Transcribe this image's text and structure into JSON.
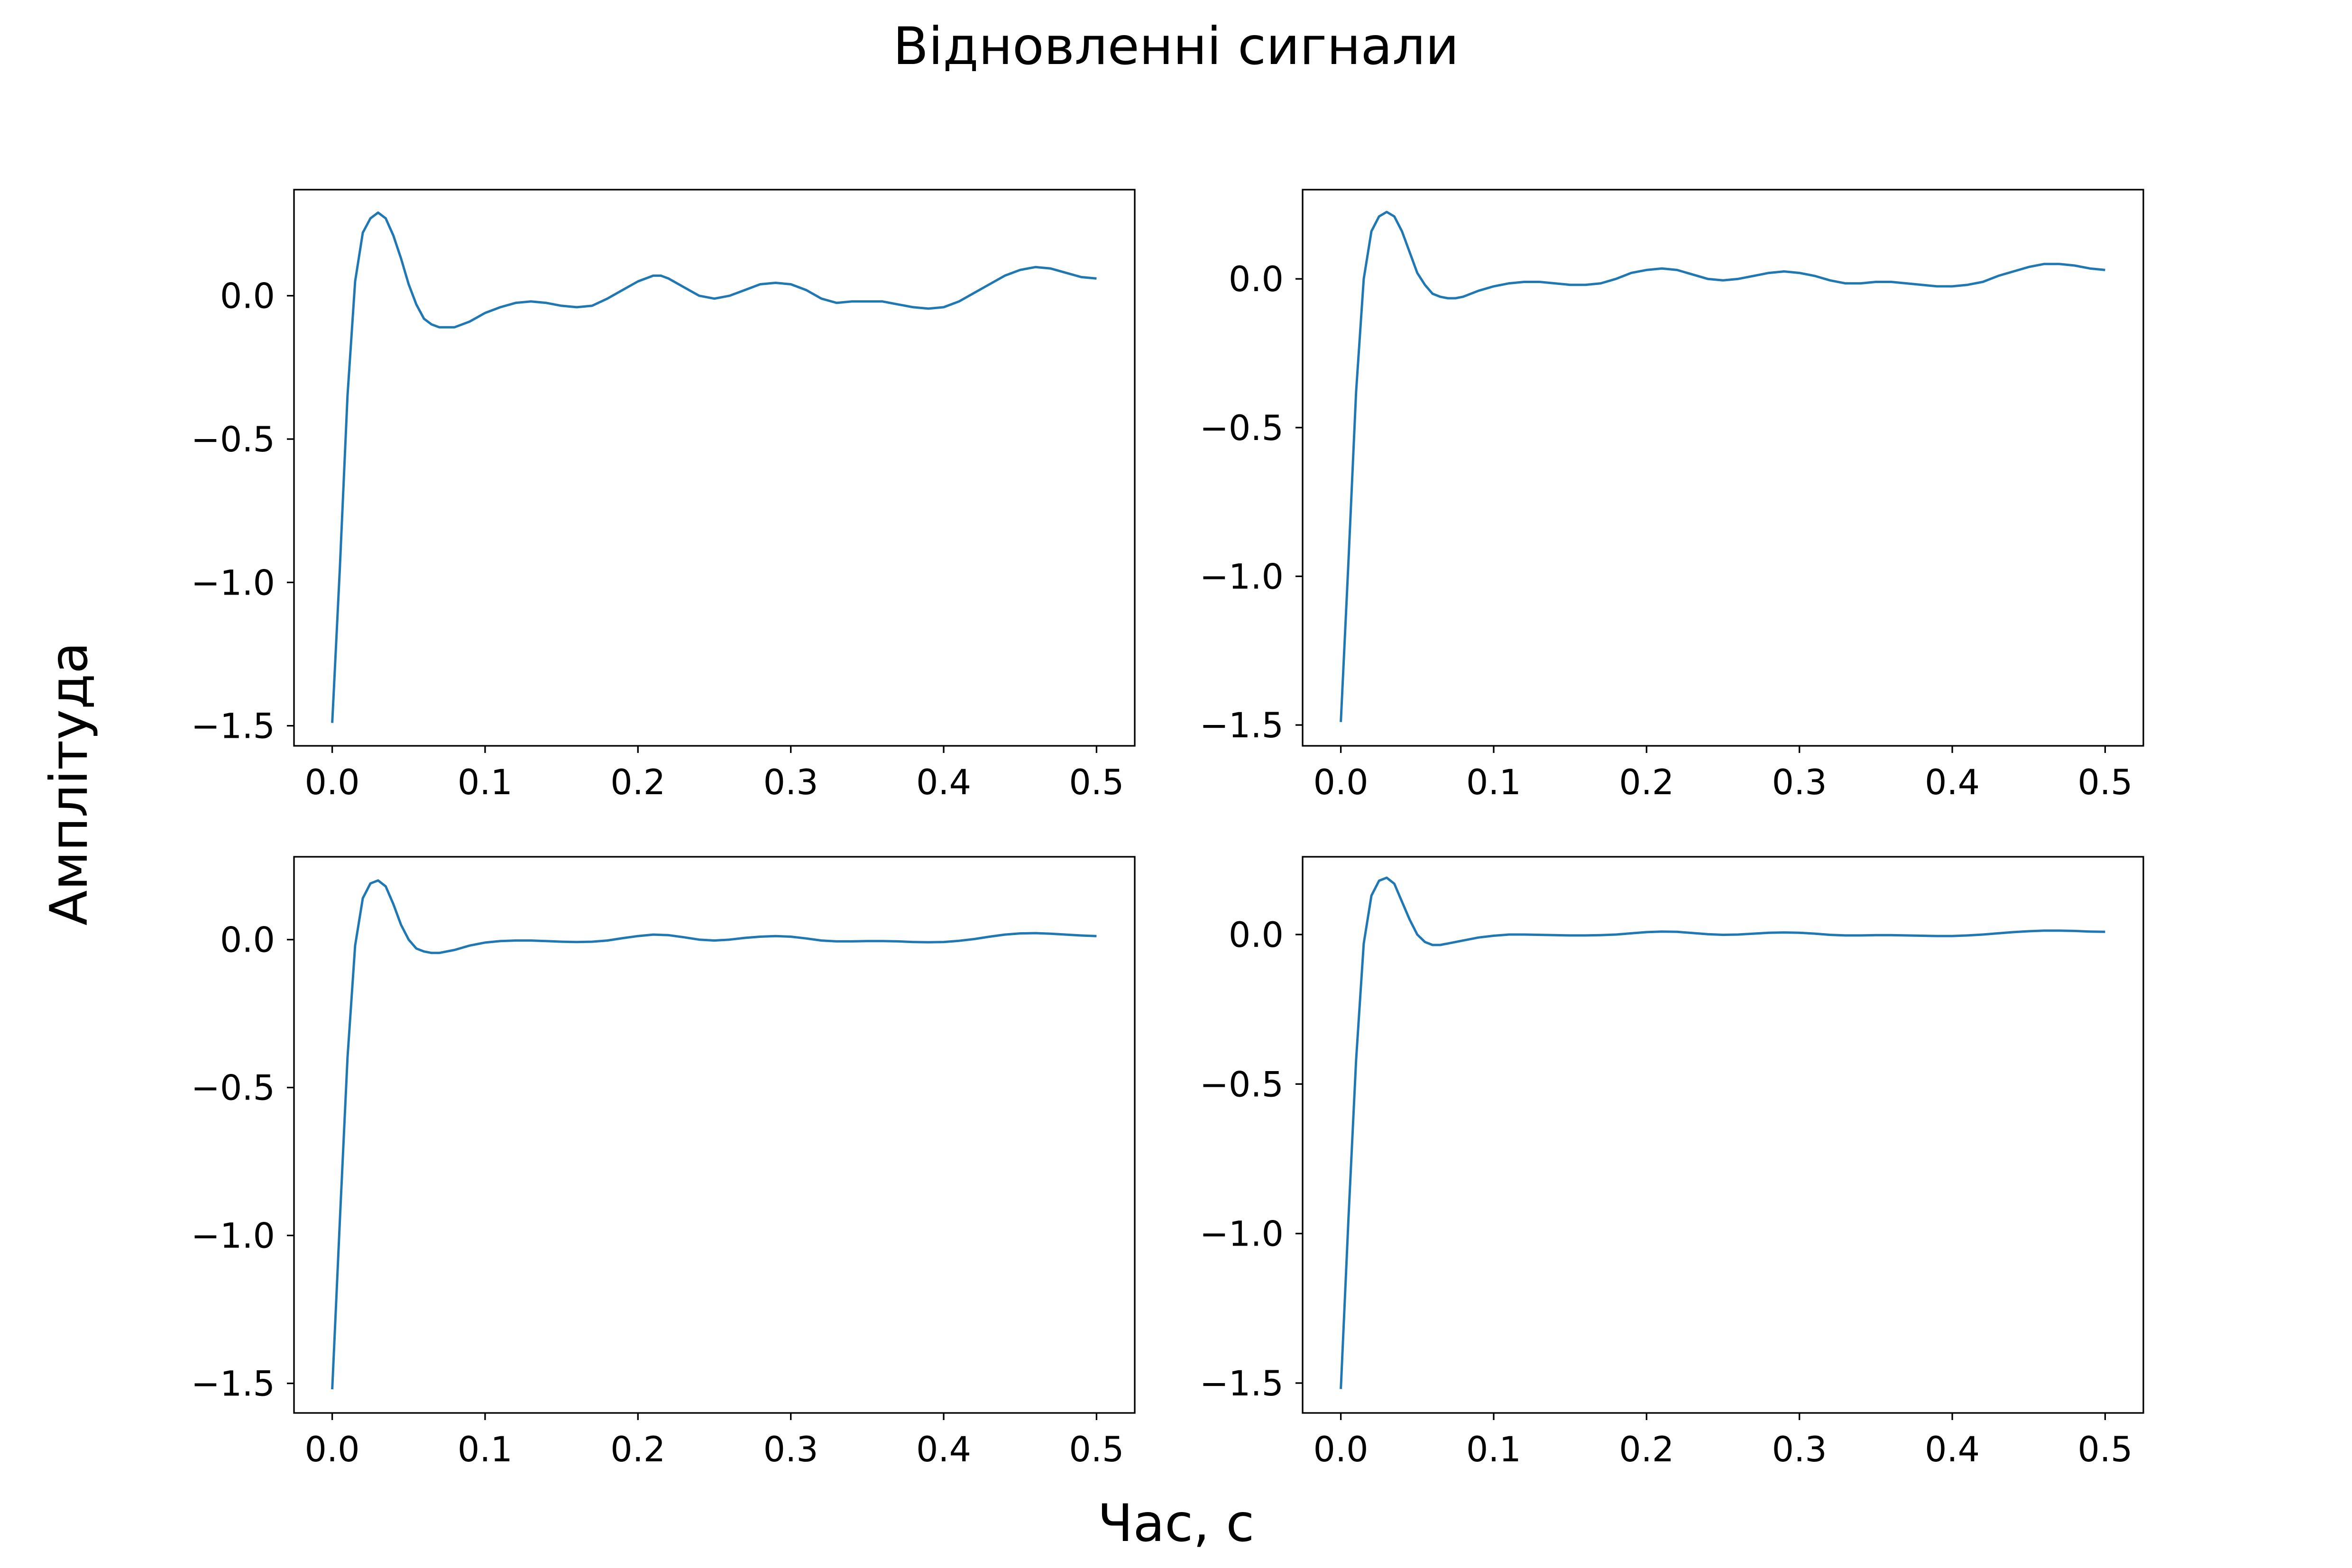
{
  "figure": {
    "suptitle": "Відновленні  сигнали",
    "xlabel": "Час, с",
    "ylabel": "Амплітуда",
    "line_color": "#1f77b4"
  },
  "chart_data": [
    {
      "type": "line",
      "title": "",
      "xlabel": "",
      "ylabel": "",
      "grid": false,
      "xlim": [
        -0.025,
        0.525
      ],
      "ylim": [
        -1.57,
        0.37
      ],
      "xticks": [
        0.0,
        0.1,
        0.2,
        0.3,
        0.4,
        0.5
      ],
      "xtick_labels": [
        "0.0",
        "0.1",
        "0.2",
        "0.3",
        "0.4",
        "0.5"
      ],
      "yticks": [
        -1.5,
        -1.0,
        -0.5,
        0.0
      ],
      "ytick_labels": [
        "−1.5",
        "−1.0",
        "−0.5",
        "0.0"
      ],
      "series": [
        {
          "x": [
            0,
            0.005,
            0.01,
            0.015,
            0.02,
            0.025,
            0.03,
            0.035,
            0.04,
            0.045,
            0.05,
            0.055,
            0.06,
            0.065,
            0.07,
            0.075,
            0.08,
            0.085,
            0.09,
            0.1,
            0.11,
            0.12,
            0.13,
            0.14,
            0.15,
            0.16,
            0.17,
            0.18,
            0.19,
            0.2,
            0.21,
            0.215,
            0.22,
            0.23,
            0.24,
            0.25,
            0.26,
            0.27,
            0.28,
            0.29,
            0.3,
            0.31,
            0.32,
            0.33,
            0.34,
            0.35,
            0.36,
            0.37,
            0.38,
            0.39,
            0.4,
            0.41,
            0.42,
            0.43,
            0.44,
            0.45,
            0.46,
            0.47,
            0.48,
            0.49,
            0.5
          ],
          "y": [
            -1.49,
            -0.95,
            -0.35,
            0.05,
            0.22,
            0.27,
            0.29,
            0.27,
            0.21,
            0.13,
            0.04,
            -0.03,
            -0.08,
            -0.1,
            -0.11,
            -0.11,
            -0.11,
            -0.1,
            -0.09,
            -0.06,
            -0.04,
            -0.025,
            -0.02,
            -0.025,
            -0.035,
            -0.04,
            -0.035,
            -0.01,
            0.02,
            0.05,
            0.07,
            0.07,
            0.06,
            0.03,
            0.0,
            -0.01,
            0.0,
            0.02,
            0.04,
            0.045,
            0.04,
            0.02,
            -0.01,
            -0.025,
            -0.02,
            -0.02,
            -0.02,
            -0.03,
            -0.04,
            -0.045,
            -0.04,
            -0.02,
            0.01,
            0.04,
            0.07,
            0.09,
            0.1,
            0.095,
            0.08,
            0.065,
            0.06
          ]
        }
      ]
    },
    {
      "type": "line",
      "title": "",
      "xlabel": "",
      "ylabel": "",
      "grid": false,
      "xlim": [
        -0.025,
        0.525
      ],
      "ylim": [
        -1.57,
        0.3
      ],
      "xticks": [
        0.0,
        0.1,
        0.2,
        0.3,
        0.4,
        0.5
      ],
      "xtick_labels": [
        "0.0",
        "0.1",
        "0.2",
        "0.3",
        "0.4",
        "0.5"
      ],
      "yticks": [
        -1.5,
        -1.0,
        -0.5,
        0.0
      ],
      "ytick_labels": [
        "−1.5",
        "−1.0",
        "−0.5",
        "0.0"
      ],
      "series": [
        {
          "x": [
            0,
            0.005,
            0.01,
            0.015,
            0.02,
            0.025,
            0.03,
            0.035,
            0.04,
            0.045,
            0.05,
            0.055,
            0.06,
            0.065,
            0.07,
            0.075,
            0.08,
            0.09,
            0.1,
            0.11,
            0.12,
            0.13,
            0.14,
            0.15,
            0.16,
            0.17,
            0.18,
            0.19,
            0.2,
            0.21,
            0.22,
            0.23,
            0.24,
            0.25,
            0.26,
            0.27,
            0.28,
            0.29,
            0.3,
            0.31,
            0.32,
            0.33,
            0.34,
            0.35,
            0.36,
            0.37,
            0.38,
            0.39,
            0.4,
            0.41,
            0.42,
            0.43,
            0.44,
            0.45,
            0.46,
            0.47,
            0.48,
            0.49,
            0.5
          ],
          "y": [
            -1.49,
            -0.95,
            -0.38,
            0.0,
            0.16,
            0.21,
            0.225,
            0.21,
            0.16,
            0.09,
            0.02,
            -0.02,
            -0.05,
            -0.06,
            -0.065,
            -0.065,
            -0.06,
            -0.04,
            -0.025,
            -0.015,
            -0.01,
            -0.01,
            -0.015,
            -0.02,
            -0.02,
            -0.015,
            0.0,
            0.02,
            0.03,
            0.035,
            0.03,
            0.015,
            0.0,
            -0.005,
            0.0,
            0.01,
            0.02,
            0.025,
            0.02,
            0.01,
            -0.005,
            -0.015,
            -0.015,
            -0.01,
            -0.01,
            -0.015,
            -0.02,
            -0.025,
            -0.025,
            -0.02,
            -0.01,
            0.01,
            0.025,
            0.04,
            0.05,
            0.05,
            0.045,
            0.035,
            0.03
          ]
        }
      ]
    },
    {
      "type": "line",
      "title": "",
      "xlabel": "",
      "ylabel": "",
      "grid": false,
      "xlim": [
        -0.025,
        0.525
      ],
      "ylim": [
        -1.6,
        0.28
      ],
      "xticks": [
        0.0,
        0.1,
        0.2,
        0.3,
        0.4,
        0.5
      ],
      "xtick_labels": [
        "0.0",
        "0.1",
        "0.2",
        "0.3",
        "0.4",
        "0.5"
      ],
      "yticks": [
        -1.5,
        -1.0,
        -0.5,
        0.0
      ],
      "ytick_labels": [
        "−1.5",
        "−1.0",
        "−0.5",
        "0.0"
      ],
      "series": [
        {
          "x": [
            0,
            0.005,
            0.01,
            0.015,
            0.02,
            0.025,
            0.03,
            0.035,
            0.04,
            0.045,
            0.05,
            0.055,
            0.06,
            0.065,
            0.07,
            0.08,
            0.09,
            0.1,
            0.11,
            0.12,
            0.13,
            0.14,
            0.15,
            0.16,
            0.17,
            0.18,
            0.19,
            0.2,
            0.21,
            0.22,
            0.23,
            0.24,
            0.25,
            0.26,
            0.27,
            0.28,
            0.29,
            0.3,
            0.31,
            0.32,
            0.33,
            0.34,
            0.35,
            0.36,
            0.37,
            0.38,
            0.39,
            0.4,
            0.41,
            0.42,
            0.43,
            0.44,
            0.45,
            0.46,
            0.47,
            0.48,
            0.49,
            0.5
          ],
          "y": [
            -1.52,
            -0.95,
            -0.4,
            -0.02,
            0.14,
            0.19,
            0.2,
            0.18,
            0.12,
            0.05,
            0.0,
            -0.03,
            -0.04,
            -0.045,
            -0.045,
            -0.035,
            -0.02,
            -0.01,
            -0.005,
            -0.003,
            -0.003,
            -0.005,
            -0.007,
            -0.008,
            -0.007,
            -0.003,
            0.005,
            0.012,
            0.017,
            0.015,
            0.008,
            0.0,
            -0.003,
            0.0,
            0.006,
            0.01,
            0.012,
            0.01,
            0.004,
            -0.003,
            -0.006,
            -0.006,
            -0.005,
            -0.005,
            -0.006,
            -0.008,
            -0.009,
            -0.008,
            -0.004,
            0.002,
            0.01,
            0.017,
            0.021,
            0.022,
            0.02,
            0.017,
            0.014,
            0.012
          ]
        }
      ]
    },
    {
      "type": "line",
      "title": "",
      "xlabel": "",
      "ylabel": "",
      "grid": false,
      "xlim": [
        -0.025,
        0.525
      ],
      "ylim": [
        -1.6,
        0.26
      ],
      "xticks": [
        0.0,
        0.1,
        0.2,
        0.3,
        0.4,
        0.5
      ],
      "xtick_labels": [
        "0.0",
        "0.1",
        "0.2",
        "0.3",
        "0.4",
        "0.5"
      ],
      "yticks": [
        -1.5,
        -1.0,
        -0.5,
        0.0
      ],
      "ytick_labels": [
        "−1.5",
        "−1.0",
        "−0.5",
        "0.0"
      ],
      "series": [
        {
          "x": [
            0,
            0.005,
            0.01,
            0.015,
            0.02,
            0.025,
            0.03,
            0.035,
            0.04,
            0.045,
            0.05,
            0.055,
            0.06,
            0.065,
            0.07,
            0.08,
            0.09,
            0.1,
            0.11,
            0.12,
            0.13,
            0.14,
            0.15,
            0.16,
            0.17,
            0.18,
            0.19,
            0.2,
            0.21,
            0.22,
            0.23,
            0.24,
            0.25,
            0.26,
            0.27,
            0.28,
            0.29,
            0.3,
            0.31,
            0.32,
            0.33,
            0.34,
            0.35,
            0.36,
            0.37,
            0.38,
            0.39,
            0.4,
            0.41,
            0.42,
            0.43,
            0.44,
            0.45,
            0.46,
            0.47,
            0.48,
            0.49,
            0.5
          ],
          "y": [
            -1.52,
            -0.95,
            -0.42,
            -0.03,
            0.13,
            0.18,
            0.19,
            0.17,
            0.11,
            0.05,
            0.0,
            -0.025,
            -0.035,
            -0.035,
            -0.03,
            -0.02,
            -0.01,
            -0.004,
            0.0,
            0.0,
            -0.001,
            -0.002,
            -0.003,
            -0.003,
            -0.002,
            0.0,
            0.004,
            0.008,
            0.01,
            0.009,
            0.005,
            0.001,
            -0.001,
            0.0,
            0.003,
            0.006,
            0.007,
            0.006,
            0.003,
            -0.001,
            -0.003,
            -0.003,
            -0.002,
            -0.002,
            -0.003,
            -0.004,
            -0.005,
            -0.005,
            -0.003,
            0.0,
            0.004,
            0.008,
            0.011,
            0.013,
            0.013,
            0.012,
            0.01,
            0.009
          ]
        }
      ]
    }
  ]
}
